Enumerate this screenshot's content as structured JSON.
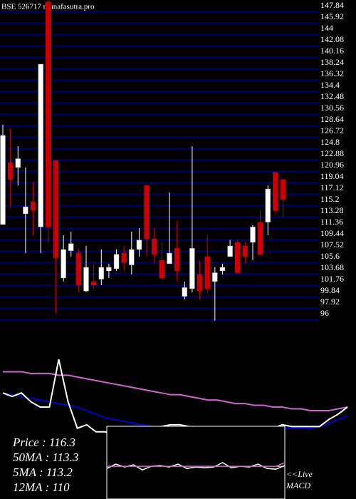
{
  "chart_data": [
    {
      "type": "candlestick",
      "title": "BSE 526717 munafasutra.pro",
      "open": [
        111.0,
        121.4,
        120.6,
        112.8,
        114.8,
        110.6,
        148.5,
        121.8,
        102.0,
        106.6,
        106.2,
        99.8,
        101.4,
        101.8,
        103.2,
        103.56,
        106.2,
        104.2,
        106.8,
        117.6,
        108.6,
        105.0,
        104.4,
        107.0,
        98.9,
        100.2,
        102.6,
        105.6,
        101.4,
        103.2,
        105.6,
        108.0,
        107.4,
        108.0,
        111.4,
        111.4,
        119.8,
        118.6
      ],
      "high": [
        127.8,
        127.2,
        124.2,
        120.6,
        118.2,
        138.0,
        149.0,
        121.8,
        109.2,
        109.8,
        106.8,
        107.4,
        104.4,
        106.8,
        104.4,
        106.8,
        107.4,
        109.8,
        110.4,
        117.6,
        110.4,
        108.0,
        116.4,
        111.6,
        101.4,
        124.2,
        105.0,
        109.2,
        103.8,
        104.4,
        108.4,
        108.4,
        108.0,
        110.9,
        113.4,
        117.6,
        119.8,
        118.6
      ],
      "low": [
        111.0,
        114.0,
        117.6,
        106.2,
        109.2,
        106.2,
        108.0,
        96.0,
        101.4,
        105.6,
        99.6,
        99.6,
        100.2,
        100.8,
        102.0,
        103.2,
        103.2,
        102.6,
        105.6,
        105.6,
        104.4,
        101.7,
        104.4,
        101.4,
        98.4,
        99.6,
        98.4,
        99.4,
        94.8,
        102.6,
        105.6,
        103.2,
        104.4,
        105.0,
        105.8,
        109.2,
        112.8,
        112.2
      ],
      "close": [
        126.0,
        118.6,
        122.1,
        114.0,
        113.4,
        138.0,
        110.6,
        105.4,
        106.8,
        107.8,
        100.8,
        103.8,
        100.8,
        103.8,
        103.8,
        106.0,
        104.6,
        106.8,
        108.4,
        108.6,
        106.0,
        102.0,
        106.2,
        103.2,
        100.4,
        107.0,
        99.8,
        100.2,
        102.9,
        103.8,
        107.4,
        102.9,
        105.6,
        110.6,
        106.0,
        117.0,
        113.4,
        115.2
      ],
      "up_color": "#ffffff",
      "down_color": "#cc0000",
      "line_color": "#000066",
      "ylim": [
        94.56,
        148.8
      ],
      "yticks": [
        147.84,
        145.92,
        144,
        142.08,
        140.16,
        138.24,
        136.32,
        134.4,
        132.48,
        130.56,
        128.64,
        126.72,
        124.8,
        122.88,
        120.96,
        119.04,
        117.12,
        115.2,
        113.28,
        111.36,
        109.44,
        107.52,
        105.6,
        103.68,
        101.76,
        99.84,
        97.92,
        96
      ]
    },
    {
      "type": "line",
      "ylim": [
        0,
        100
      ],
      "series": [
        {
          "color": "#cc66cc",
          "values": [
            72,
            72,
            72,
            71,
            71,
            71,
            70,
            70,
            69,
            68,
            67,
            66,
            65,
            64,
            63,
            62,
            61,
            60,
            59,
            59,
            58,
            57,
            56,
            56,
            55,
            54,
            54,
            53,
            53,
            52,
            52,
            51,
            51,
            50,
            50,
            50,
            51,
            52
          ]
        },
        {
          "color": "#0000cc",
          "values": [
            60,
            59,
            58,
            57,
            56,
            55,
            54,
            53,
            52,
            50,
            48,
            46,
            45,
            44,
            43,
            42,
            41,
            41,
            41,
            41,
            41,
            40,
            40,
            40,
            40,
            40,
            40,
            40,
            40,
            40,
            40,
            40,
            40,
            40,
            41,
            43,
            45,
            47
          ]
        },
        {
          "color": "#ffffff",
          "values": [
            60,
            58,
            60,
            55,
            52,
            52,
            79,
            55,
            40,
            42,
            38,
            38,
            36,
            38,
            39,
            39,
            40,
            41,
            42,
            42,
            41,
            40,
            39,
            40,
            40,
            39,
            40,
            40,
            39,
            40,
            42,
            41,
            41,
            41,
            41,
            45,
            48,
            52
          ]
        }
      ],
      "annotations": [
        "Price  :  116.3",
        "50MA : 113.3",
        "5MA : 113.2",
        "12MA : 110"
      ]
    },
    {
      "type": "line",
      "ylim": [
        -50,
        50
      ],
      "annotation": "<<Live MACD",
      "series": [
        {
          "color": "#ffffff",
          "values": [
            -8,
            -2,
            -6,
            -3,
            -10,
            -5,
            -4,
            -6,
            -2,
            -8,
            -6,
            -7,
            -6,
            0,
            -7,
            -5,
            -6,
            -2,
            -8,
            -9,
            -4
          ]
        },
        {
          "color": "#cc66cc",
          "values": [
            -5,
            -5,
            -5,
            -5,
            -5,
            -5,
            -5,
            -5,
            -5,
            -5,
            -5,
            -5,
            -5,
            -5,
            -5,
            -5,
            -5,
            -5,
            -5,
            -5,
            0
          ]
        }
      ]
    }
  ]
}
